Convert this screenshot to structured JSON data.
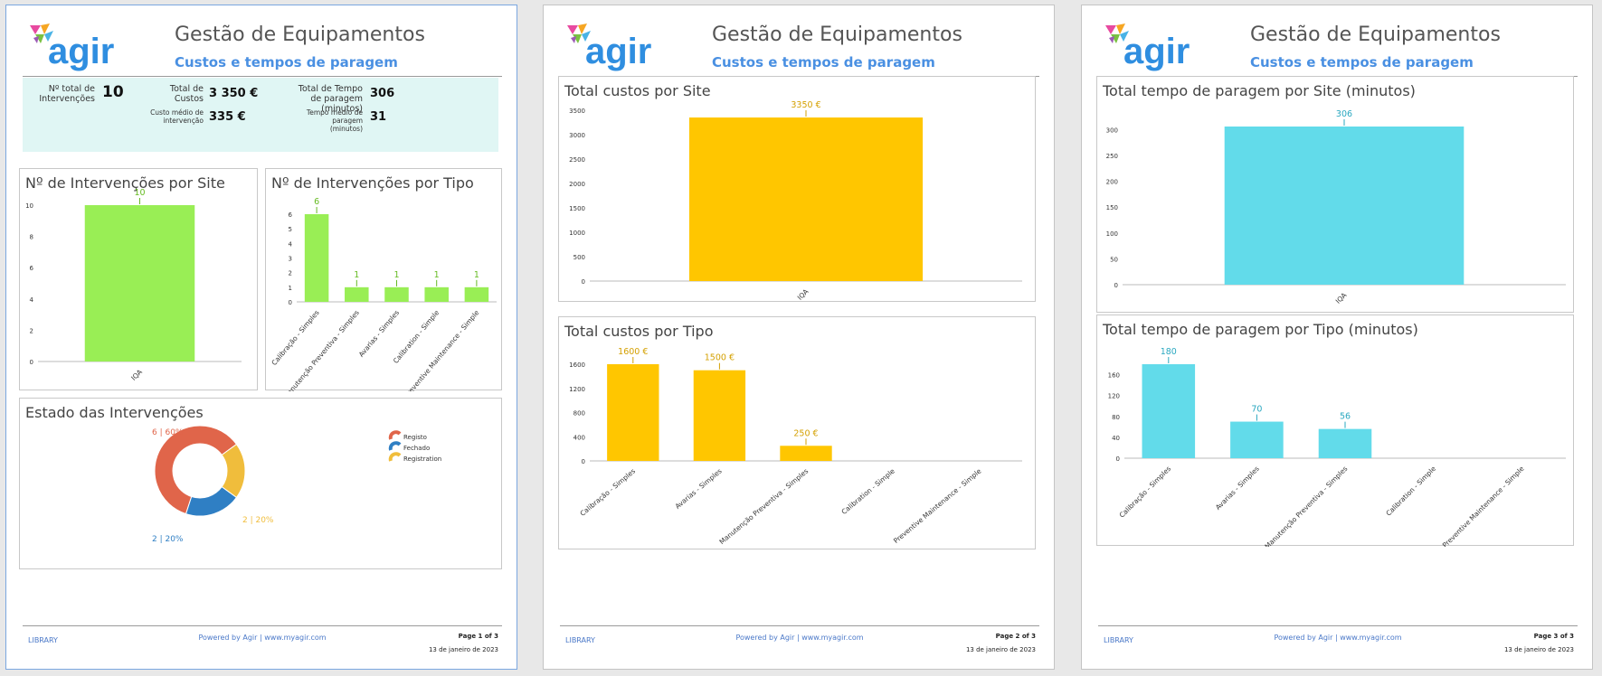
{
  "report": {
    "title": "Gestão de Equipamentos",
    "subtitle": "Custos e tempos de paragem",
    "logo_text": "agir"
  },
  "kpis": {
    "total_interventions_label": "Nº total de Intervenções",
    "total_interventions_value": "10",
    "total_costs_label": "Total de Custos",
    "total_costs_value": "3 350 €",
    "avg_cost_label": "Custo médio de intervenção",
    "avg_cost_value": "335 €",
    "total_downtime_label": "Total de Tempo de paragem (minutos)",
    "total_downtime_value": "306",
    "avg_downtime_label": "Tempo médio de paragem (minutos)",
    "avg_downtime_value": "31"
  },
  "panels": {
    "p1_site": "Nº de Intervenções por Site",
    "p1_type": "Nº de Intervenções por Tipo",
    "p1_state": "Estado das Intervenções",
    "p2_site": "Total custos por Site",
    "p2_type": "Total custos por Tipo",
    "p3_site": "Total tempo de paragem por Site (minutos)",
    "p3_type": "Total tempo de paragem por Tipo (minutos)"
  },
  "footer": {
    "library": "LIBRARY",
    "powered": "Powered by  Agir  |  www.myagir.com",
    "date": "13 de janeiro de 2023",
    "pages": [
      "Page 1 of 3",
      "Page 2 of 3",
      "Page 3 of 3"
    ]
  },
  "colors": {
    "green": "#99ee55",
    "green_label": "#66bb22",
    "yellow": "#ffc600",
    "yellow_label": "#d4a000",
    "cyan": "#62dbea",
    "cyan_label": "#2aa8c0",
    "registo": "#e0654a",
    "fechado": "#2f7fc4",
    "registration": "#f0bd3c"
  },
  "chart_data": [
    {
      "id": "interventions_by_site",
      "type": "bar",
      "categories": [
        "IQA"
      ],
      "values": [
        10
      ],
      "labels": [
        "10"
      ],
      "ylim": [
        0,
        10
      ],
      "yticks": [
        0,
        2,
        4,
        6,
        8,
        10
      ]
    },
    {
      "id": "interventions_by_type",
      "type": "bar",
      "categories": [
        "Calibração - Simples",
        "Manutenção Preventiva - Simples",
        "Avarias - Simples",
        "Calibration - Simple",
        "Preventive Maintenance - Simple"
      ],
      "values": [
        6,
        1,
        1,
        1,
        1
      ],
      "labels": [
        "6",
        "1",
        "1",
        "1",
        "1"
      ],
      "ylim": [
        0,
        6
      ],
      "yticks": [
        0,
        1,
        2,
        3,
        4,
        5,
        6
      ]
    },
    {
      "id": "intervention_state",
      "type": "pie",
      "categories": [
        "Registo",
        "Fechado",
        "Registration"
      ],
      "values": [
        6,
        2,
        2
      ],
      "labels": [
        "6  |  60%",
        "2  |  20%",
        "2  |  20%"
      ]
    },
    {
      "id": "costs_by_site",
      "type": "bar",
      "categories": [
        "IQA"
      ],
      "values": [
        3350
      ],
      "labels": [
        "3350 €"
      ],
      "ylim": [
        0,
        3350
      ],
      "yticks": [
        0,
        500,
        1000,
        1500,
        2000,
        2500,
        3000,
        3500
      ]
    },
    {
      "id": "costs_by_type",
      "type": "bar",
      "categories": [
        "Calibração - Simples",
        "Avarias - Simples",
        "Manutenção Preventiva - Simples",
        "Calibration - Simple",
        "Preventive Maintenance - Simple"
      ],
      "values": [
        1600,
        1500,
        250,
        0,
        0
      ],
      "labels": [
        "1600 €",
        "1500 €",
        "250 €",
        "",
        ""
      ],
      "ylim": [
        0,
        1600
      ],
      "yticks": [
        0,
        400,
        800,
        1200,
        1600
      ]
    },
    {
      "id": "downtime_by_site",
      "type": "bar",
      "categories": [
        "IQA"
      ],
      "values": [
        306
      ],
      "labels": [
        "306"
      ],
      "ylim": [
        0,
        306
      ],
      "yticks": [
        0,
        50,
        100,
        150,
        200,
        250,
        300
      ]
    },
    {
      "id": "downtime_by_type",
      "type": "bar",
      "categories": [
        "Calibração - Simples",
        "Avarias - Simples",
        "Manutenção Preventiva - Simples",
        "Calibration - Simple",
        "Preventive Maintenance - Simple"
      ],
      "values": [
        180,
        70,
        56,
        0,
        0
      ],
      "labels": [
        "180",
        "70",
        "56",
        "",
        ""
      ],
      "ylim": [
        0,
        180
      ],
      "yticks": [
        0,
        40,
        80,
        120,
        160
      ]
    }
  ]
}
